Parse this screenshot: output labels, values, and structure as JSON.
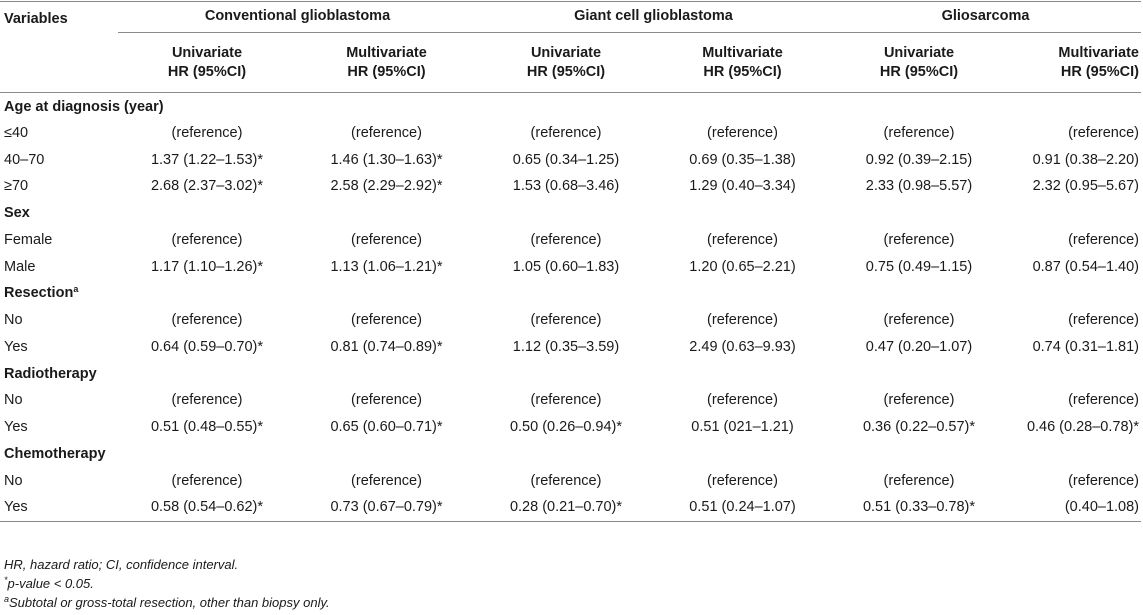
{
  "header": {
    "variables": "Variables",
    "groups": [
      "Conventional glioblastoma",
      "Giant cell glioblastoma",
      "Gliosarcoma"
    ],
    "sub_line1": [
      "Univariate",
      "Multivariate",
      "Univariate",
      "Multivariate",
      "Univariate",
      "Multivariate"
    ],
    "sub_line2": [
      "HR (95%CI)",
      "HR (95%CI)",
      "HR (95%CI)",
      "HR (95%CI)",
      "HR (95%CI)",
      "HR (95%CI)"
    ]
  },
  "sections": [
    {
      "title": "Age at diagnosis (year)",
      "title_sup": "",
      "rows": [
        {
          "label": "≤40",
          "values": [
            "(reference)",
            "(reference)",
            "(reference)",
            "(reference)",
            "(reference)",
            "(reference)"
          ]
        },
        {
          "label": "40–70",
          "values": [
            "1.37 (1.22–1.53)*",
            "1.46 (1.30–1.63)*",
            "0.65 (0.34–1.25)",
            "0.69 (0.35–1.38)",
            "0.92 (0.39–2.15)",
            "0.91 (0.38–2.20)"
          ]
        },
        {
          "label": "≥70",
          "values": [
            "2.68 (2.37–3.02)*",
            "2.58 (2.29–2.92)*",
            "1.53 (0.68–3.46)",
            "1.29 (0.40–3.34)",
            "2.33 (0.98–5.57)",
            "2.32 (0.95–5.67)"
          ]
        }
      ]
    },
    {
      "title": "Sex",
      "title_sup": "",
      "rows": [
        {
          "label": "Female",
          "values": [
            "(reference)",
            "(reference)",
            "(reference)",
            "(reference)",
            "(reference)",
            "(reference)"
          ]
        },
        {
          "label": "Male",
          "values": [
            "1.17 (1.10–1.26)*",
            "1.13 (1.06–1.21)*",
            "1.05 (0.60–1.83)",
            "1.20 (0.65–2.21)",
            "0.75 (0.49–1.15)",
            "0.87 (0.54–1.40)"
          ]
        }
      ]
    },
    {
      "title": "Resection",
      "title_sup": "a",
      "rows": [
        {
          "label": "No",
          "values": [
            "(reference)",
            "(reference)",
            "(reference)",
            "(reference)",
            "(reference)",
            "(reference)"
          ]
        },
        {
          "label": "Yes",
          "values": [
            "0.64 (0.59–0.70)*",
            "0.81 (0.74–0.89)*",
            "1.12 (0.35–3.59)",
            "2.49 (0.63–9.93)",
            "0.47 (0.20–1.07)",
            "0.74 (0.31–1.81)"
          ]
        }
      ]
    },
    {
      "title": "Radiotherapy",
      "title_sup": "",
      "rows": [
        {
          "label": "No",
          "values": [
            "(reference)",
            "(reference)",
            "(reference)",
            "(reference)",
            "(reference)",
            "(reference)"
          ]
        },
        {
          "label": "Yes",
          "values": [
            "0.51 (0.48–0.55)*",
            "0.65 (0.60–0.71)*",
            "0.50 (0.26–0.94)*",
            "0.51 (021–1.21)",
            "0.36 (0.22–0.57)*",
            "0.46 (0.28–0.78)*"
          ]
        }
      ]
    },
    {
      "title": "Chemotherapy",
      "title_sup": "",
      "rows": [
        {
          "label": "No",
          "values": [
            "(reference)",
            "(reference)",
            "(reference)",
            "(reference)",
            "(reference)",
            "(reference)"
          ]
        },
        {
          "label": "Yes",
          "values": [
            "0.58 (0.54–0.62)*",
            "0.73 (0.67–0.79)*",
            "0.28 (0.21–0.70)*",
            "0.51 (0.24–1.07)",
            "0.51 (0.33–0.78)*",
            "(0.40–1.08)"
          ]
        }
      ]
    }
  ],
  "footnotes": [
    {
      "sup": "",
      "text": "HR, hazard ratio; CI, confidence interval."
    },
    {
      "sup": "*",
      "text": "p-value < 0.05."
    },
    {
      "sup": "a",
      "text": "Subtotal or gross-total resection, other than biopsy only."
    }
  ]
}
